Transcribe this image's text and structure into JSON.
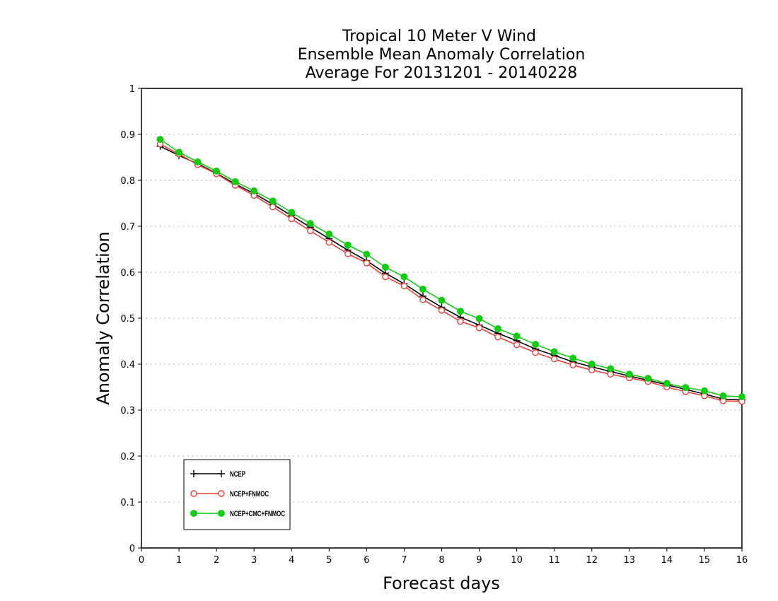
{
  "chart_data": {
    "type": "line",
    "title_lines": [
      "Tropical 10 Meter V Wind",
      "Ensemble Mean Anomaly Correlation",
      "Average For 20131201 - 20140228"
    ],
    "xlabel": "Forecast days",
    "ylabel": "Anomaly Correlation",
    "xlim": [
      0,
      16
    ],
    "ylim": [
      0,
      1
    ],
    "x_ticks": [
      "0",
      "1",
      "2",
      "3",
      "4",
      "5",
      "6",
      "7",
      "8",
      "9",
      "10",
      "11",
      "12",
      "13",
      "14",
      "15",
      "16"
    ],
    "y_ticks": [
      "0",
      "0.1",
      "0.2",
      "0.3",
      "0.4",
      "0.5",
      "0.6",
      "0.7",
      "0.8",
      "0.9",
      "1"
    ],
    "grid": "horizontal dotted",
    "legend_position": "bottom-left",
    "x": [
      0.5,
      1,
      1.5,
      2,
      2.5,
      3,
      3.5,
      4,
      4.5,
      5,
      5.5,
      6,
      6.5,
      7,
      7.5,
      8,
      8.5,
      9,
      9.5,
      10,
      10.5,
      11,
      11.5,
      12,
      12.5,
      13,
      13.5,
      14,
      14.5,
      15,
      15.5,
      16
    ],
    "series": [
      {
        "name": "NCEP",
        "color": "#000000",
        "marker": "plus",
        "values": [
          0.874,
          0.854,
          0.836,
          0.815,
          0.792,
          0.771,
          0.748,
          0.723,
          0.698,
          0.673,
          0.648,
          0.625,
          0.598,
          0.575,
          0.548,
          0.524,
          0.502,
          0.485,
          0.467,
          0.451,
          0.433,
          0.419,
          0.405,
          0.394,
          0.384,
          0.374,
          0.365,
          0.355,
          0.345,
          0.335,
          0.324,
          0.322
        ]
      },
      {
        "name": "NCEP+FNMOC",
        "color": "#e8403c",
        "marker": "open-circle",
        "values": [
          0.879,
          0.857,
          0.834,
          0.814,
          0.789,
          0.767,
          0.742,
          0.716,
          0.69,
          0.665,
          0.64,
          0.62,
          0.59,
          0.57,
          0.54,
          0.517,
          0.493,
          0.479,
          0.459,
          0.442,
          0.425,
          0.411,
          0.398,
          0.387,
          0.378,
          0.37,
          0.362,
          0.35,
          0.34,
          0.331,
          0.32,
          0.319
        ]
      },
      {
        "name": "NCEP+CMC+FNMOC",
        "color": "#11cc11",
        "marker": "filled-circle",
        "values": [
          0.889,
          0.861,
          0.84,
          0.82,
          0.797,
          0.777,
          0.755,
          0.73,
          0.706,
          0.683,
          0.659,
          0.639,
          0.611,
          0.59,
          0.563,
          0.539,
          0.515,
          0.499,
          0.477,
          0.461,
          0.443,
          0.427,
          0.413,
          0.4,
          0.39,
          0.378,
          0.369,
          0.358,
          0.349,
          0.342,
          0.331,
          0.329
        ]
      }
    ]
  }
}
